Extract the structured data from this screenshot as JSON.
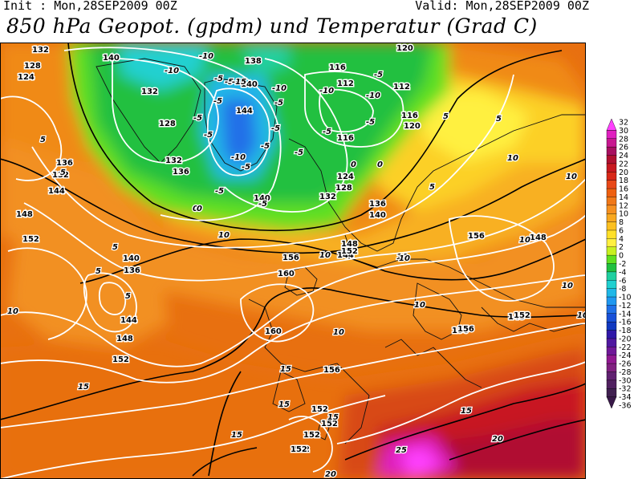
{
  "header": {
    "init": "Init : Mon,28SEP2009 00Z",
    "valid": "Valid: Mon,28SEP2009 00Z",
    "title": "850 hPa Geopot. (gpdm) und Temperatur (Grad C)"
  },
  "legend": {
    "ticks": [
      "32",
      "30",
      "28",
      "26",
      "24",
      "22",
      "20",
      "18",
      "16",
      "14",
      "12",
      "10",
      "8",
      "6",
      "4",
      "2",
      "0",
      "-2",
      "-4",
      "-6",
      "-8",
      "-10",
      "-12",
      "-14",
      "-16",
      "-18",
      "-20",
      "-22",
      "-24",
      "-26",
      "-28",
      "-30",
      "-32",
      "-34",
      "-36"
    ],
    "colors": [
      "#ff40ff",
      "#e020c0",
      "#c81890",
      "#a81060",
      "#b01030",
      "#c81820",
      "#d82818",
      "#e84818",
      "#ee6010",
      "#f07818",
      "#f59020",
      "#f8a820",
      "#fcc020",
      "#ffe028",
      "#fff040",
      "#c8f020",
      "#60e020",
      "#20c040",
      "#20d0a0",
      "#20d0d0",
      "#20b8e8",
      "#2098f0",
      "#2070e8",
      "#1850d8",
      "#1038c0",
      "#3018a8",
      "#5018a0",
      "#701898",
      "#901890",
      "#802080",
      "#602070",
      "#502060",
      "#402050",
      "#381848"
    ]
  },
  "geopotential_labels": [
    {
      "text": "132"
    },
    {
      "text": "128"
    },
    {
      "text": "124"
    },
    {
      "text": "140"
    },
    {
      "text": "138"
    },
    {
      "text": "140"
    },
    {
      "text": "144"
    },
    {
      "text": "132"
    },
    {
      "text": "128"
    },
    {
      "text": "136"
    },
    {
      "text": "132"
    },
    {
      "text": "120"
    },
    {
      "text": "116"
    },
    {
      "text": "112"
    },
    {
      "text": "112"
    },
    {
      "text": "116"
    },
    {
      "text": "120"
    },
    {
      "text": "116"
    },
    {
      "text": "124"
    },
    {
      "text": "128"
    },
    {
      "text": "132"
    },
    {
      "text": "136"
    },
    {
      "text": "140"
    },
    {
      "text": "140"
    },
    {
      "text": "144"
    },
    {
      "text": "148"
    },
    {
      "text": "152"
    },
    {
      "text": "136"
    },
    {
      "text": "140"
    },
    {
      "text": "144"
    },
    {
      "text": "148"
    },
    {
      "text": "152"
    },
    {
      "text": "136"
    },
    {
      "text": "132"
    },
    {
      "text": "144"
    },
    {
      "text": "148"
    },
    {
      "text": "152"
    },
    {
      "text": "156"
    },
    {
      "text": "156"
    },
    {
      "text": "160"
    },
    {
      "text": "160"
    },
    {
      "text": "156"
    },
    {
      "text": "152"
    },
    {
      "text": "152"
    },
    {
      "text": "152"
    },
    {
      "text": "156"
    },
    {
      "text": "148"
    },
    {
      "text": "148"
    },
    {
      "text": "152"
    },
    {
      "text": "156"
    },
    {
      "text": "152"
    },
    {
      "text": "152"
    }
  ],
  "temperature_labels": [
    {
      "text": "-10"
    },
    {
      "text": "-10"
    },
    {
      "text": "-5"
    },
    {
      "text": "-5"
    },
    {
      "text": "-15"
    },
    {
      "text": "-5"
    },
    {
      "text": "-10"
    },
    {
      "text": "-5"
    },
    {
      "text": "-5"
    },
    {
      "text": "-5"
    },
    {
      "text": "-5"
    },
    {
      "text": "-5"
    },
    {
      "text": "-10"
    },
    {
      "text": "-5"
    },
    {
      "text": "-10"
    },
    {
      "text": "-5"
    },
    {
      "text": "-10"
    },
    {
      "text": "-5"
    },
    {
      "text": "-5"
    },
    {
      "text": "-5"
    },
    {
      "text": "0"
    },
    {
      "text": "0"
    },
    {
      "text": "0"
    },
    {
      "text": "-5"
    },
    {
      "text": "5"
    },
    {
      "text": "5"
    },
    {
      "text": "5"
    },
    {
      "text": "5"
    },
    {
      "text": "5"
    },
    {
      "text": "5"
    },
    {
      "text": "10"
    },
    {
      "text": "10"
    },
    {
      "text": "10"
    },
    {
      "text": "10"
    },
    {
      "text": "10"
    },
    {
      "text": "10"
    },
    {
      "text": "10"
    },
    {
      "text": "10"
    },
    {
      "text": "10"
    },
    {
      "text": "10"
    },
    {
      "text": "15"
    },
    {
      "text": "15"
    },
    {
      "text": "15"
    },
    {
      "text": "15"
    },
    {
      "text": "15"
    },
    {
      "text": "15"
    },
    {
      "text": "20"
    },
    {
      "text": "20"
    },
    {
      "text": "25"
    },
    {
      "text": "5"
    },
    {
      "text": "5"
    },
    {
      "text": "10"
    },
    {
      "text": "10"
    },
    {
      "text": "0"
    },
    {
      "text": "-5"
    }
  ]
}
